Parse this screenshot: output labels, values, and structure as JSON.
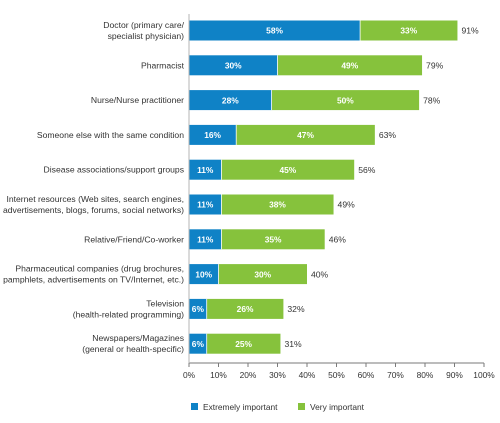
{
  "chart_data": {
    "type": "bar",
    "orientation": "horizontal",
    "stacked": true,
    "categories": [
      [
        "Doctor (primary care/",
        "specialist physician)"
      ],
      [
        "Pharmacist"
      ],
      [
        "Nurse/Nurse practitioner"
      ],
      [
        "Someone else with the same condition"
      ],
      [
        "Disease associations/support groups"
      ],
      [
        "Internet resources (Web sites, search engines,",
        "advertisements, blogs, forums, social networks)"
      ],
      [
        "Relative/Friend/Co-worker"
      ],
      [
        "Pharmaceutical companies (drug brochures,",
        "pamphlets, advertisements on TV/Internet, etc.)"
      ],
      [
        "Television",
        "(health-related programming)"
      ],
      [
        "Newspapers/Magazines",
        "(general or health-specific)"
      ]
    ],
    "series": [
      {
        "name": "Extremely important",
        "color": "#0f82c6",
        "values": [
          58,
          30,
          28,
          16,
          11,
          11,
          11,
          10,
          6,
          6
        ],
        "labels": [
          "58%",
          "30%",
          "28%",
          "16%",
          "11%",
          "11%",
          "11%",
          "10%",
          "6%",
          "6%"
        ]
      },
      {
        "name": "Very important",
        "color": "#86c23c",
        "values": [
          33,
          49,
          50,
          47,
          45,
          38,
          35,
          30,
          26,
          25
        ],
        "labels": [
          "33%",
          "49%",
          "50%",
          "47%",
          "45%",
          "38%",
          "35%",
          "30%",
          "26%",
          "25%"
        ]
      }
    ],
    "totals": [
      91,
      79,
      78,
      63,
      56,
      49,
      46,
      40,
      32,
      31
    ],
    "total_labels": [
      "91%",
      "79%",
      "78%",
      "63%",
      "56%",
      "49%",
      "46%",
      "40%",
      "32%",
      "31%"
    ],
    "xlim": [
      0,
      100
    ],
    "xticks": [
      0,
      10,
      20,
      30,
      40,
      50,
      60,
      70,
      80,
      90,
      100
    ],
    "xtick_labels": [
      "0%",
      "10%",
      "20%",
      "30%",
      "40%",
      "50%",
      "60%",
      "70%",
      "80%",
      "90%",
      "100%"
    ],
    "grid": false,
    "legend_position": "bottom",
    "title": "",
    "xlabel": "",
    "ylabel": ""
  }
}
